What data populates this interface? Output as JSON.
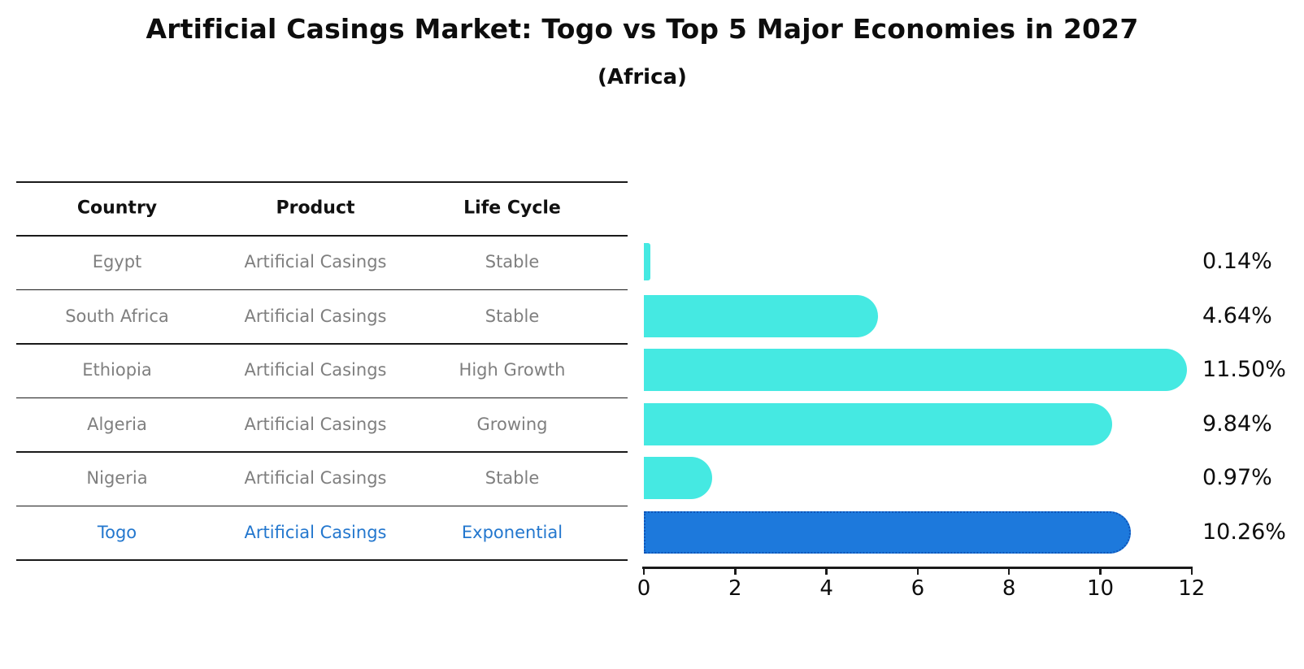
{
  "title": "Artificial Casings Market: Togo vs Top 5 Major Economies in 2027",
  "subtitle": "(Africa)",
  "table": {
    "headers": [
      "Country",
      "Product",
      "Life Cycle"
    ],
    "rows": [
      {
        "country": "Egypt",
        "product": "Artificial Casings",
        "life_cycle": "Stable",
        "highlight": false
      },
      {
        "country": "South Africa",
        "product": "Artificial Casings",
        "life_cycle": "Stable",
        "highlight": false
      },
      {
        "country": "Ethiopia",
        "product": "Artificial Casings",
        "life_cycle": "High Growth",
        "highlight": false
      },
      {
        "country": "Algeria",
        "product": "Artificial Casings",
        "life_cycle": "Growing",
        "highlight": false
      },
      {
        "country": "Nigeria",
        "product": "Artificial Casings",
        "life_cycle": "Stable",
        "highlight": true
      }
    ],
    "togo_row": {
      "country": "Togo",
      "product": "Artificial Casings",
      "life_cycle": "Exponential"
    }
  },
  "chart_data": {
    "type": "bar",
    "orientation": "horizontal",
    "title": "Artificial Casings Market: Togo vs Top 5 Major Economies in 2027",
    "subtitle": "(Africa)",
    "categories": [
      "Egypt",
      "South Africa",
      "Ethiopia",
      "Algeria",
      "Nigeria",
      "Togo"
    ],
    "values": [
      0.14,
      4.64,
      11.5,
      9.84,
      0.97,
      10.26
    ],
    "value_labels": [
      "0.14%",
      "4.64%",
      "11.50%",
      "9.84%",
      "0.97%",
      "10.26%"
    ],
    "xlim": [
      0,
      12
    ],
    "x_ticks": [
      "0",
      "2",
      "4",
      "6",
      "8",
      "10",
      "12"
    ],
    "grid": false,
    "legend": false,
    "bar_color": "#45E9E2",
    "highlight_bar_color": "#1D79DC",
    "highlight_bar_edge_color": "#0F55B8",
    "highlight_index": 5,
    "highlight_text_color": "#2377CE"
  }
}
